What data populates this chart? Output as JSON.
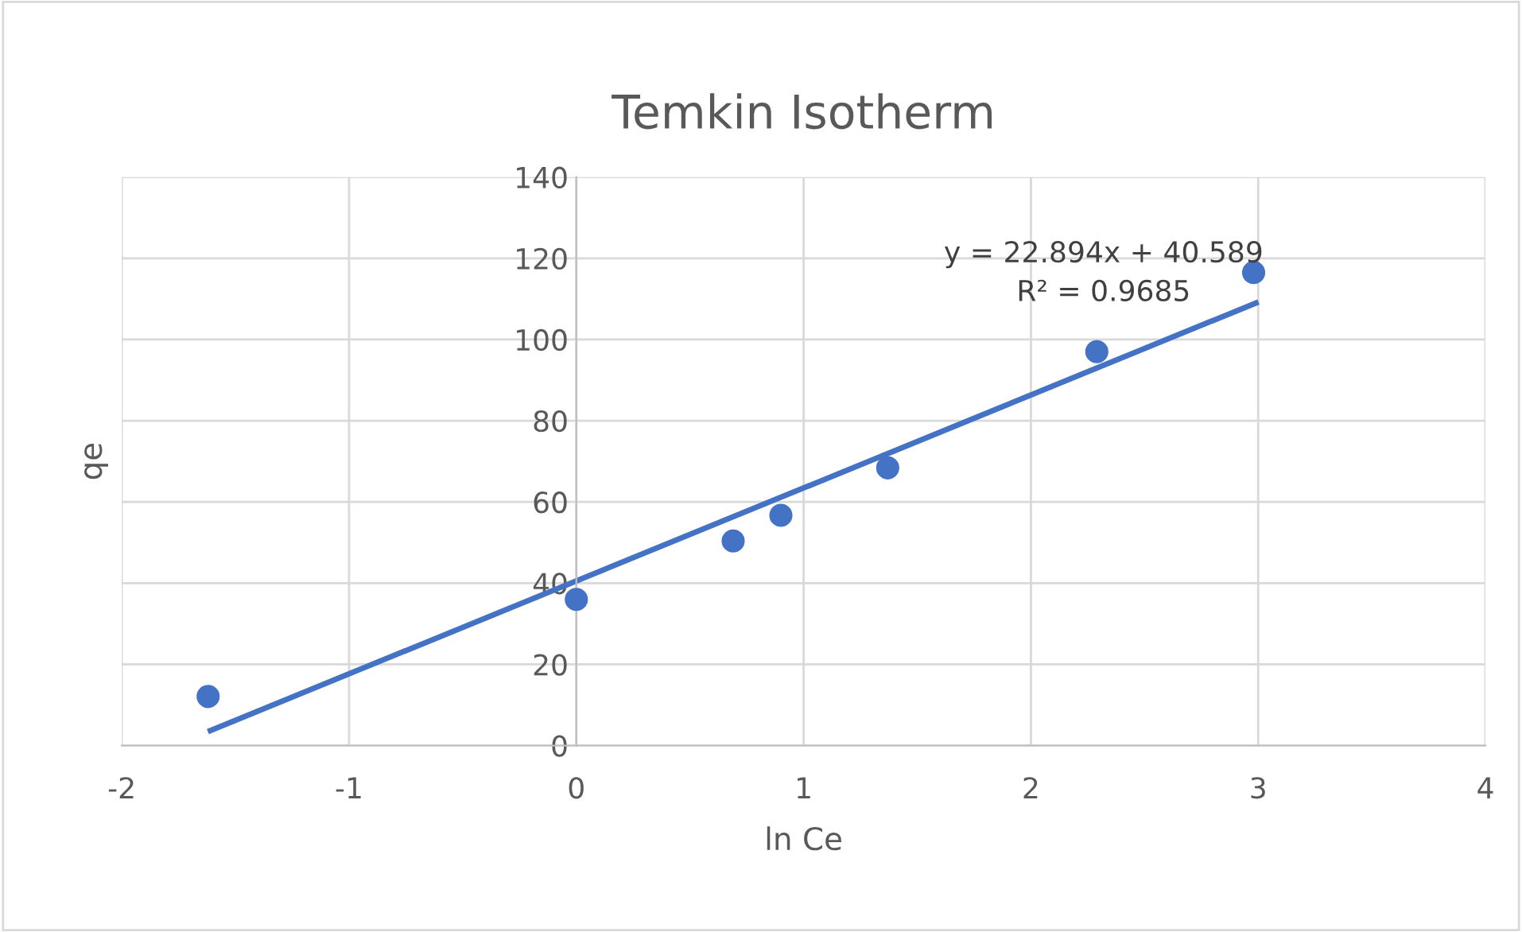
{
  "chart_data": {
    "type": "scatter",
    "title": "Temkin Isotherm",
    "xlabel": "ln Ce",
    "ylabel": "qe",
    "xlim": [
      -2,
      4
    ],
    "xticks": [
      -2,
      -1,
      0,
      1,
      2,
      3,
      4
    ],
    "ylim": [
      0,
      140
    ],
    "yticks": [
      0,
      20,
      40,
      60,
      80,
      100,
      120,
      140
    ],
    "grid": true,
    "legend": false,
    "series": [
      {
        "marker": "circle",
        "color": "#4472c4",
        "x": [
          -1.62,
          0.0,
          0.69,
          0.9,
          1.37,
          2.29,
          2.98
        ],
        "values": [
          12.1,
          36,
          50.4,
          56.7,
          68.4,
          97,
          116.5
        ]
      },
      {
        "type": "line",
        "color": "#4472c4",
        "marker": "none",
        "line_style": "solid",
        "x": [
          -1.61,
          2.99
        ],
        "values": [
          3.7,
          109
        ]
      }
    ],
    "annotations": [
      "y = 22.894x + 40.589\nR² = 0.9685"
    ]
  }
}
